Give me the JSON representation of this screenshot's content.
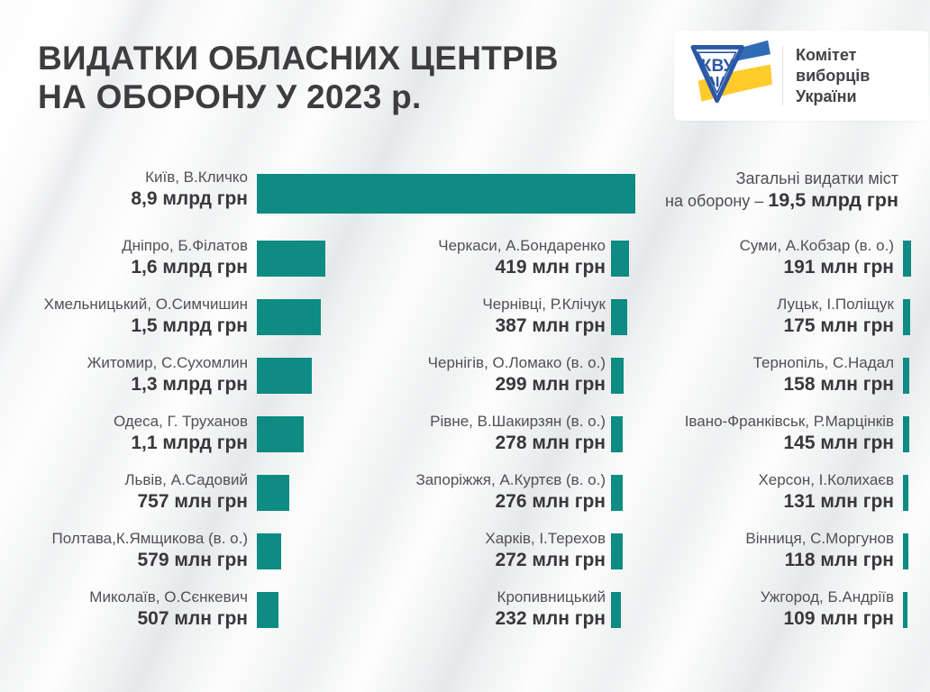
{
  "header": {
    "title_line1": "ВИДАТКИ ОБЛАСНИХ ЦЕНТРІВ",
    "title_line2": "НА ОБОРОНУ У 2023 р."
  },
  "logo": {
    "monogram": "КВУ",
    "org_line1": "Комітет",
    "org_line2": "виборців",
    "org_line3": "України"
  },
  "total": {
    "line1": "Загальні видатки міст",
    "line2_prefix": "на оборону – ",
    "line2_value": "19,5 млрд грн"
  },
  "colors": {
    "bar": "#0E8B82",
    "accent_blue": "#2B57A5",
    "accent_yellow": "#FFCB2B",
    "title_text": "#3D3D40",
    "label_text": "#505056",
    "value_text": "#38383C",
    "background": "#EEF0F1",
    "card_bg": "#FFFFFF"
  },
  "chart_data": {
    "type": "bar",
    "orientation": "horizontal",
    "title": "ВИДАТКИ ОБЛАСНИХ ЦЕНТРІВ НА ОБОРОНУ У 2023 р.",
    "unit": "млн грн",
    "legend": "none",
    "total_spending_mln": 19500,
    "categories": [
      "Київ, В.Кличко",
      "Дніпро, Б.Філатов",
      "Хмельницький, О.Симчишин",
      "Житомир, С.Сухомлин",
      "Одеса, Г. Труханов",
      "Львів, А.Садовий",
      "Полтава,К.Ямщикова (в. о.)",
      "Миколаїв, О.Сєнкевич",
      "Черкаси, А.Бондаренко",
      "Чернівці, Р.Клічук",
      "Чернігів, О.Ломако (в. о.)",
      "Рівне, В.Шакирзян (в. о.)",
      "Запоріжжя, А.Куртєв (в. о.)",
      "Харків, І.Терехов",
      "Кропивницький",
      "Суми, А.Кобзар (в. о.)",
      "Луцьк, І.Поліщук",
      "Тернопіль, С.Надал",
      "Івано-Франківськ, Р.Марцінків",
      "Херсон, І.Колихаєв",
      "Вінниця, С.Моргунов",
      "Ужгород, Б.Андріїв"
    ],
    "values_mln": [
      8900,
      1600,
      1500,
      1300,
      1100,
      757,
      579,
      507,
      419,
      387,
      299,
      278,
      276,
      272,
      232,
      191,
      175,
      158,
      145,
      131,
      118,
      109
    ],
    "value_labels": [
      "8,9 млрд грн",
      "1,6 млрд грн",
      "1,5 млрд грн",
      "1,3 млрд грн",
      "1,1 млрд грн",
      "757 млн грн",
      "579 млн грн",
      "507 млн грн",
      "419 млн грн",
      "387 млн грн",
      "299 млн грн",
      "278 млн грн",
      "276 млн грн",
      "272 млн грн",
      "232 млн грн",
      "191 млн грн",
      "175 млн грн",
      "158 млн грн",
      "145 млн грн",
      "131 млн грн",
      "118 млн грн",
      "109 млн грн"
    ],
    "columns": [
      [
        0,
        1,
        2,
        3,
        4,
        5,
        6,
        7
      ],
      [
        8,
        9,
        10,
        11,
        12,
        13,
        14
      ],
      [
        15,
        16,
        17,
        18,
        19,
        20,
        21
      ]
    ]
  }
}
